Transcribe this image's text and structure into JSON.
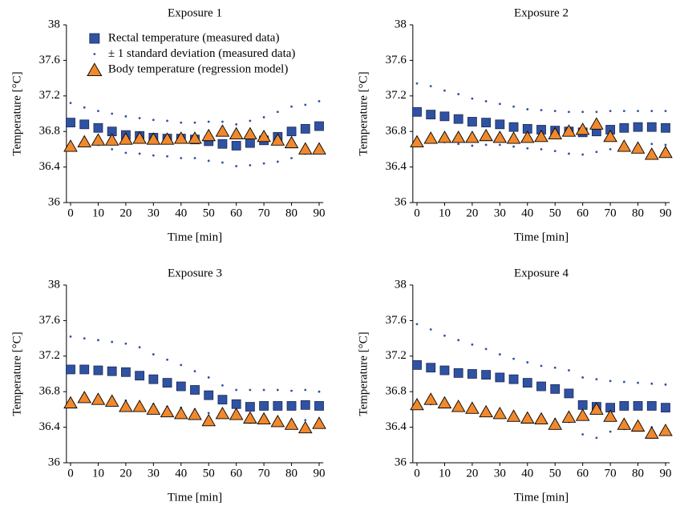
{
  "chart_data": [
    {
      "type": "scatter",
      "title": "Exposure 1",
      "xlabel": "Time [min]",
      "ylabel": "Temperature [°C]",
      "x": [
        0,
        5,
        10,
        15,
        20,
        25,
        30,
        35,
        40,
        45,
        50,
        55,
        60,
        65,
        70,
        75,
        80,
        85,
        90
      ],
      "xlim": [
        -1.5,
        91.5
      ],
      "xticks": [
        0,
        10,
        20,
        30,
        40,
        50,
        60,
        70,
        80,
        90
      ],
      "ylim": [
        36,
        38
      ],
      "yticks": [
        36,
        36.4,
        36.8,
        37.2,
        37.6,
        38
      ],
      "legend": "upper left",
      "series": [
        {
          "name": "Rectal temperature (measured data)",
          "color": "#2f52a3",
          "marker": "square",
          "values": [
            36.9,
            36.88,
            36.84,
            36.8,
            36.76,
            36.75,
            36.73,
            36.72,
            36.72,
            36.71,
            36.69,
            36.66,
            36.64,
            36.67,
            36.7,
            36.74,
            36.8,
            36.83,
            36.86
          ]
        },
        {
          "name": "± 1 standard deviation (measured data)",
          "color": "#2f52a3",
          "marker": "dot",
          "values": [
            37.12,
            37.07,
            37.03,
            37.0,
            36.97,
            36.95,
            36.93,
            36.92,
            36.9,
            36.9,
            36.91,
            36.91,
            36.88,
            36.92,
            36.96,
            37.02,
            37.08,
            37.1,
            37.14
          ]
        },
        {
          "color": "#2f52a3",
          "marker": "dot",
          "values": [
            36.68,
            36.68,
            36.65,
            36.6,
            36.56,
            36.55,
            36.53,
            36.52,
            36.5,
            36.5,
            36.47,
            36.45,
            36.41,
            36.42,
            36.44,
            36.46,
            36.5,
            36.55,
            36.58
          ]
        },
        {
          "name": "Body temperature (regression model)",
          "color": "#f0892d",
          "marker": "triangle",
          "values": [
            36.63,
            36.68,
            36.7,
            36.7,
            36.71,
            36.72,
            36.71,
            36.71,
            36.72,
            36.72,
            36.75,
            36.8,
            36.77,
            36.77,
            36.74,
            36.7,
            36.67,
            36.6,
            36.6
          ]
        }
      ]
    },
    {
      "type": "scatter",
      "title": "Exposure 2",
      "xlabel": "Time [min]",
      "ylabel": "Temperature [°C]",
      "x": [
        0,
        5,
        10,
        15,
        20,
        25,
        30,
        35,
        40,
        45,
        50,
        55,
        60,
        65,
        70,
        75,
        80,
        85,
        90
      ],
      "xlim": [
        -1.5,
        91.5
      ],
      "xticks": [
        0,
        10,
        20,
        30,
        40,
        50,
        60,
        70,
        80,
        90
      ],
      "ylim": [
        36,
        38
      ],
      "yticks": [
        36,
        36.4,
        36.8,
        37.2,
        37.6,
        38
      ],
      "series": [
        {
          "color": "#2f52a3",
          "marker": "square",
          "values": [
            37.02,
            36.99,
            36.97,
            36.94,
            36.91,
            36.9,
            36.88,
            36.85,
            36.83,
            36.82,
            36.81,
            36.8,
            36.79,
            36.8,
            36.82,
            36.84,
            36.85,
            36.85,
            36.84
          ]
        },
        {
          "color": "#2f52a3",
          "marker": "dot",
          "values": [
            37.34,
            37.31,
            37.26,
            37.22,
            37.17,
            37.14,
            37.11,
            37.08,
            37.05,
            37.04,
            37.03,
            37.02,
            37.02,
            37.02,
            37.03,
            37.03,
            37.03,
            37.03,
            37.03
          ]
        },
        {
          "color": "#2f52a3",
          "marker": "dot",
          "values": [
            36.72,
            36.7,
            36.68,
            36.66,
            36.64,
            36.65,
            36.65,
            36.63,
            36.61,
            36.6,
            36.58,
            36.55,
            36.54,
            36.57,
            36.6,
            36.62,
            36.66,
            36.66,
            36.65
          ]
        },
        {
          "color": "#f0892d",
          "marker": "triangle",
          "values": [
            36.68,
            36.72,
            36.73,
            36.73,
            36.73,
            36.75,
            36.73,
            36.72,
            36.73,
            36.74,
            36.77,
            36.8,
            36.82,
            36.88,
            36.74,
            36.63,
            36.61,
            36.54,
            36.56
          ]
        }
      ]
    },
    {
      "type": "scatter",
      "title": "Exposure 3",
      "xlabel": "Time [min]",
      "ylabel": "Temperature [°C]",
      "x": [
        0,
        5,
        10,
        15,
        20,
        25,
        30,
        35,
        40,
        45,
        50,
        55,
        60,
        65,
        70,
        75,
        80,
        85,
        90
      ],
      "xlim": [
        -1.5,
        91.5
      ],
      "xticks": [
        0,
        10,
        20,
        30,
        40,
        50,
        60,
        70,
        80,
        90
      ],
      "ylim": [
        36,
        38
      ],
      "yticks": [
        36,
        36.4,
        36.8,
        37.2,
        37.6,
        38
      ],
      "series": [
        {
          "color": "#2f52a3",
          "marker": "square",
          "values": [
            37.05,
            37.05,
            37.04,
            37.03,
            37.02,
            36.98,
            36.94,
            36.9,
            36.86,
            36.82,
            36.76,
            36.71,
            36.66,
            36.63,
            36.64,
            36.64,
            36.64,
            36.65,
            36.64
          ]
        },
        {
          "color": "#2f52a3",
          "marker": "dot",
          "values": [
            37.42,
            37.4,
            37.38,
            37.36,
            37.34,
            37.3,
            37.22,
            37.16,
            37.1,
            37.03,
            36.96,
            36.87,
            36.82,
            36.82,
            36.82,
            36.82,
            36.81,
            36.82,
            36.8
          ]
        },
        {
          "color": "#2f52a3",
          "marker": "dot",
          "values": [
            36.69,
            36.69,
            36.69,
            36.69,
            36.7,
            36.66,
            36.66,
            36.63,
            36.62,
            36.6,
            36.56,
            36.55,
            36.5,
            36.45,
            36.46,
            36.46,
            36.47,
            36.48,
            36.47
          ]
        },
        {
          "color": "#f0892d",
          "marker": "triangle",
          "values": [
            36.67,
            36.73,
            36.71,
            36.69,
            36.63,
            36.63,
            36.6,
            36.57,
            36.55,
            36.54,
            36.47,
            36.55,
            36.54,
            36.5,
            36.49,
            36.46,
            36.43,
            36.39,
            36.44
          ]
        }
      ]
    },
    {
      "type": "scatter",
      "title": "Exposure 4",
      "xlabel": "Time [min]",
      "ylabel": "Temperature [°C]",
      "x": [
        0,
        5,
        10,
        15,
        20,
        25,
        30,
        35,
        40,
        45,
        50,
        55,
        60,
        65,
        70,
        75,
        80,
        85,
        90
      ],
      "xlim": [
        -1.5,
        91.5
      ],
      "xticks": [
        0,
        10,
        20,
        30,
        40,
        50,
        60,
        70,
        80,
        90
      ],
      "ylim": [
        36,
        38
      ],
      "yticks": [
        36,
        36.4,
        36.8,
        37.2,
        37.6,
        38
      ],
      "series": [
        {
          "color": "#2f52a3",
          "marker": "square",
          "values": [
            37.1,
            37.07,
            37.04,
            37.01,
            37.0,
            36.99,
            36.96,
            36.94,
            36.9,
            36.86,
            36.83,
            36.78,
            36.65,
            36.63,
            36.62,
            36.64,
            36.64,
            36.64,
            36.62
          ]
        },
        {
          "color": "#2f52a3",
          "marker": "dot",
          "values": [
            37.56,
            37.5,
            37.43,
            37.38,
            37.33,
            37.28,
            37.22,
            37.17,
            37.13,
            37.09,
            37.07,
            37.04,
            36.96,
            36.94,
            36.92,
            36.91,
            36.9,
            36.89,
            36.88
          ]
        },
        {
          "color": "#2f52a3",
          "marker": "dot",
          "values": [
            36.66,
            36.66,
            36.66,
            36.64,
            36.63,
            36.6,
            36.57,
            36.55,
            36.52,
            36.51,
            36.49,
            36.46,
            36.32,
            36.28,
            36.35,
            36.38,
            36.38,
            36.4,
            36.37
          ]
        },
        {
          "color": "#f0892d",
          "marker": "triangle",
          "values": [
            36.65,
            36.71,
            36.67,
            36.63,
            36.61,
            36.57,
            36.55,
            36.52,
            36.5,
            36.49,
            36.43,
            36.51,
            36.53,
            36.6,
            36.52,
            36.43,
            36.41,
            36.33,
            36.36
          ]
        }
      ]
    }
  ]
}
